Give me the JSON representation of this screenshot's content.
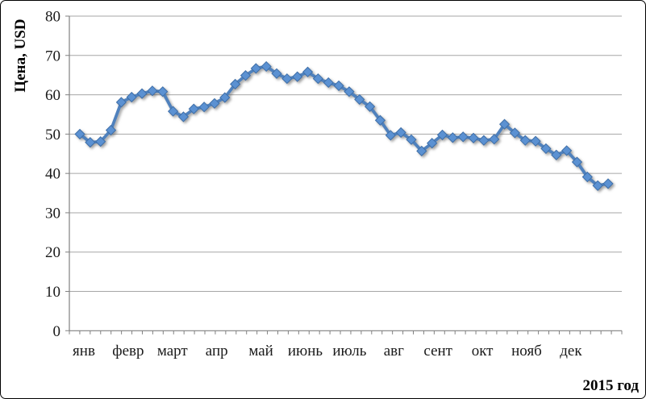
{
  "chart_data": {
    "type": "line",
    "title": "",
    "ylabel": "Цена, USD",
    "xlabel": "2015 год",
    "x_tick_labels": [
      "янв",
      "февр",
      "март",
      "апр",
      "май",
      "июнь",
      "июль",
      "авг",
      "сент",
      "окт",
      "нояб",
      "дек"
    ],
    "y_ticks": [
      0,
      10,
      20,
      30,
      40,
      50,
      60,
      70,
      80
    ],
    "ylim": [
      0,
      80
    ],
    "grid": true,
    "legend": "none",
    "marker": "diamond",
    "x_resolution": "weekly",
    "values": [
      50.0,
      47.9,
      48.1,
      51.0,
      58.1,
      59.4,
      60.3,
      61.0,
      60.8,
      55.8,
      54.4,
      56.4,
      56.9,
      57.8,
      59.3,
      62.7,
      64.9,
      66.7,
      67.2,
      65.4,
      64.1,
      64.6,
      65.8,
      64.1,
      63.1,
      62.3,
      60.8,
      58.8,
      57.0,
      53.5,
      49.7,
      50.4,
      48.6,
      45.7,
      47.7,
      49.8,
      49.1,
      49.3,
      49.0,
      48.4,
      48.7,
      52.5,
      50.3,
      48.4,
      48.2,
      46.3,
      44.7,
      45.8,
      42.9,
      39.1,
      36.9,
      37.4
    ]
  },
  "style": {
    "line_color": "#4f81bd",
    "marker_fill": "#5b91d2",
    "marker_stroke": "#3f6fa8",
    "grid_color": "#a6a6a6",
    "axis_color": "#808080",
    "text_color": "#1a1a1a"
  }
}
